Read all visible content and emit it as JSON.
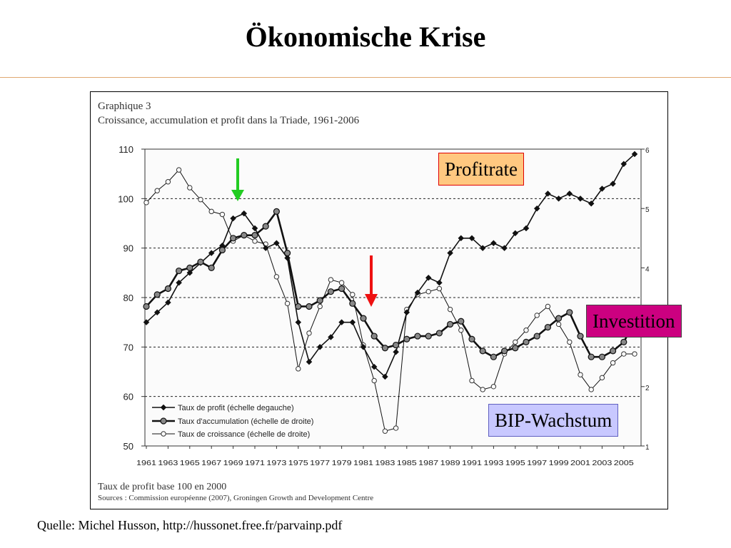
{
  "slide": {
    "title": "Ökonomische Krise",
    "source": "Quelle: Michel Husson, http://hussonet.free.fr/parvainp.pdf"
  },
  "figure": {
    "label": "Graphique 3",
    "caption": "Croissance, accumulation et profit dans la Triade, 1961-2006",
    "footnote": "Taux de profit base 100 en 2000",
    "sources": "Sources : Commission européenne (2007), Groningen Growth and Development Centre"
  },
  "callouts": {
    "profit": "Profitrate",
    "invest": "Investition",
    "bip": "BIP-Wachstum"
  },
  "arrows": {
    "green": "#22cc22",
    "red": "#ee1111"
  },
  "chart_data": {
    "type": "line",
    "x": [
      1961,
      1962,
      1963,
      1964,
      1965,
      1966,
      1967,
      1968,
      1969,
      1970,
      1971,
      1972,
      1973,
      1974,
      1975,
      1976,
      1977,
      1978,
      1979,
      1980,
      1981,
      1982,
      1983,
      1984,
      1985,
      1986,
      1987,
      1988,
      1989,
      1990,
      1991,
      1992,
      1993,
      1994,
      1995,
      1996,
      1997,
      1998,
      1999,
      2000,
      2001,
      2002,
      2003,
      2004,
      2005,
      2006
    ],
    "x_tick_labels": [
      "1961",
      "1963",
      "1965",
      "1967",
      "1969",
      "1971",
      "1973",
      "1975",
      "1977",
      "1979",
      "1981",
      "1983",
      "1985",
      "1987",
      "1989",
      "1991",
      "1993",
      "1995",
      "1997",
      "1999",
      "2001",
      "2003",
      "2005"
    ],
    "left_axis": {
      "range": [
        50,
        110
      ],
      "ticks": [
        50,
        60,
        70,
        80,
        90,
        100,
        110
      ]
    },
    "right_axis": {
      "range": [
        1,
        6
      ],
      "ticks": [
        1,
        2,
        3,
        4,
        5,
        6
      ]
    },
    "grid": "dashed horizontal at 60-100",
    "legend_position": "bottom-left",
    "series": [
      {
        "name": "Taux de profit (échelle degauche)",
        "axis": "left",
        "marker": "diamond",
        "values": [
          75,
          77,
          79,
          83,
          85,
          87,
          89,
          90.5,
          96,
          97,
          94,
          90,
          91,
          88,
          75,
          67,
          70,
          72,
          75,
          75,
          70,
          66,
          64,
          69,
          77,
          81,
          84,
          83,
          89,
          92,
          92,
          90,
          91,
          90,
          93,
          94,
          98,
          101,
          100,
          101,
          100,
          99,
          102,
          103,
          107,
          109
        ]
      },
      {
        "name": "Taux d'accumulation (échelle de droite)",
        "axis": "right",
        "marker": "filled-circle",
        "values": [
          3.35,
          3.55,
          3.65,
          3.95,
          4.0,
          4.1,
          4.0,
          4.3,
          4.5,
          4.55,
          4.55,
          4.7,
          4.95,
          4.25,
          3.35,
          3.35,
          3.45,
          3.6,
          3.65,
          3.4,
          3.15,
          2.85,
          2.65,
          2.7,
          2.8,
          2.85,
          2.85,
          2.9,
          3.05,
          3.1,
          2.8,
          2.6,
          2.5,
          2.6,
          2.65,
          2.75,
          2.85,
          3.0,
          3.15,
          3.25,
          2.85,
          2.5,
          2.5,
          2.6,
          2.75,
          3.1
        ]
      },
      {
        "name": "Taux de croissance (échelle de droite)",
        "axis": "right",
        "marker": "open-circle",
        "values": [
          5.1,
          5.3,
          5.45,
          5.65,
          5.35,
          5.15,
          4.95,
          4.9,
          4.45,
          4.55,
          4.45,
          4.4,
          3.85,
          3.4,
          2.3,
          2.9,
          3.35,
          3.8,
          3.75,
          3.55,
          2.7,
          2.1,
          1.25,
          1.3,
          3.3,
          3.55,
          3.6,
          3.65,
          3.3,
          2.95,
          2.1,
          1.95,
          2.0,
          2.55,
          2.75,
          2.95,
          3.2,
          3.35,
          3.05,
          2.75,
          2.2,
          1.95,
          2.15,
          2.4,
          2.55,
          2.55
        ]
      }
    ]
  }
}
